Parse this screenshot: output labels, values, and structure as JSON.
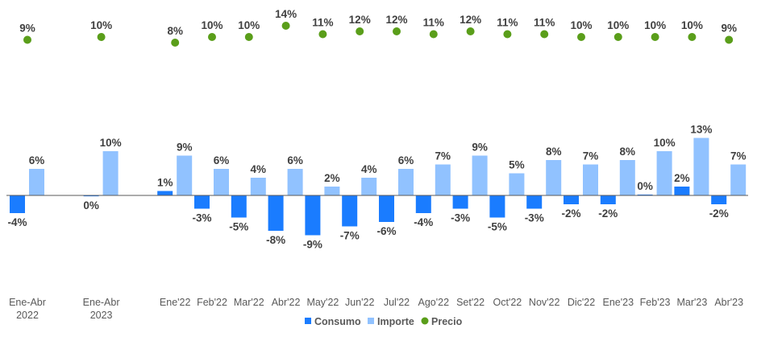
{
  "chart_data": {
    "type": "bar",
    "title": "",
    "xlabel": "",
    "ylabel": "",
    "grid": false,
    "legend_position": "bottom",
    "categories": [
      [
        "Ene-Abr",
        "2022"
      ],
      [
        "Ene-Abr",
        "2023"
      ],
      [
        "Ene'22"
      ],
      [
        "Feb'22"
      ],
      [
        "Mar'22"
      ],
      [
        "Abr'22"
      ],
      [
        "May'22"
      ],
      [
        "Jun'22"
      ],
      [
        "Jul'22"
      ],
      [
        "Ago'22"
      ],
      [
        "Set'22"
      ],
      [
        "Oct'22"
      ],
      [
        "Nov'22"
      ],
      [
        "Dic'22"
      ],
      [
        "Ene'23"
      ],
      [
        "Feb'23"
      ],
      [
        "Mar'23"
      ],
      [
        "Abr'23"
      ]
    ],
    "series": [
      {
        "name": "Consumo",
        "kind": "bar",
        "color": "#1a7cff",
        "values": [
          -4,
          -0.2,
          1,
          -3,
          -5,
          -8,
          -9,
          -7,
          -6,
          -4,
          -3,
          -5,
          -3,
          -2,
          -2,
          0.2,
          2,
          -2
        ],
        "labels": [
          "-4%",
          "0%",
          "1%",
          "-3%",
          "-5%",
          "-8%",
          "-9%",
          "-7%",
          "-6%",
          "-4%",
          "-3%",
          "-5%",
          "-3%",
          "-2%",
          "-2%",
          "0%",
          "2%",
          "-2%"
        ]
      },
      {
        "name": "Importe",
        "kind": "bar",
        "color": "#91c2ff",
        "values": [
          6,
          10,
          9,
          6,
          4,
          6,
          2,
          4,
          6,
          7,
          9,
          5,
          8,
          7,
          8,
          10,
          13,
          7
        ],
        "labels": [
          "6%",
          "10%",
          "9%",
          "6%",
          "4%",
          "6%",
          "2%",
          "4%",
          "6%",
          "7%",
          "9%",
          "5%",
          "8%",
          "7%",
          "8%",
          "10%",
          "13%",
          "7%"
        ]
      },
      {
        "name": "Precio",
        "kind": "dot",
        "color": "#5a9e1a",
        "values": [
          9,
          10,
          8,
          10,
          10,
          14,
          11,
          12,
          12,
          11,
          12,
          11,
          11,
          10,
          10,
          10,
          10,
          9
        ],
        "labels": [
          "9%",
          "10%",
          "8%",
          "10%",
          "10%",
          "14%",
          "11%",
          "12%",
          "12%",
          "11%",
          "12%",
          "11%",
          "11%",
          "10%",
          "10%",
          "10%",
          "10%",
          "9%"
        ]
      }
    ]
  }
}
